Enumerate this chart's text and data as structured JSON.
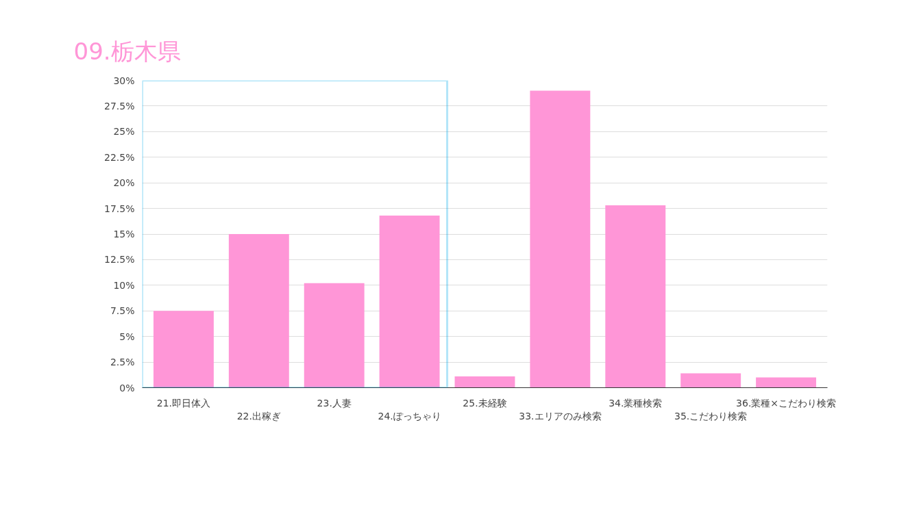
{
  "chart_data": {
    "type": "bar",
    "title": "09.栃木県",
    "categories": [
      "21.即日体入",
      "22.出稼ぎ",
      "23.人妻",
      "24.ぽっちゃり",
      "25.未経験",
      "33.エリアのみ検索",
      "34.業種検索",
      "35.こだわり検索",
      "36.業種×こだわり検索"
    ],
    "values": [
      7.5,
      15.0,
      10.2,
      16.8,
      1.1,
      29.0,
      17.8,
      1.4,
      1.0
    ],
    "color": "#ff96d7",
    "ylim": [
      0,
      30
    ],
    "yticks": [
      {
        "value": 0,
        "label": "0%"
      },
      {
        "value": 2.5,
        "label": "2.5%"
      },
      {
        "value": 5,
        "label": "5%"
      },
      {
        "value": 7.5,
        "label": "7.5%"
      },
      {
        "value": 10,
        "label": "10%"
      },
      {
        "value": 12.5,
        "label": "12.5%"
      },
      {
        "value": 15,
        "label": "15%"
      },
      {
        "value": 17.5,
        "label": "17.5%"
      },
      {
        "value": 20,
        "label": "20%"
      },
      {
        "value": 22.5,
        "label": "22.5%"
      },
      {
        "value": 25,
        "label": "25%"
      },
      {
        "value": 27.5,
        "label": "27.5%"
      },
      {
        "value": 30,
        "label": "30%"
      }
    ],
    "grid": "y"
  }
}
